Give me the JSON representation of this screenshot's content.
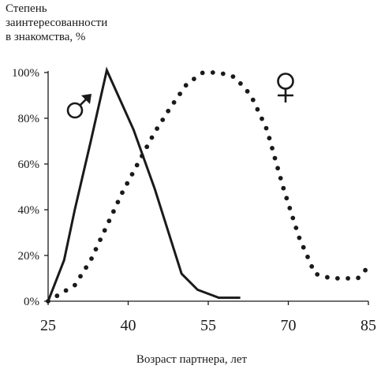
{
  "chart_data": {
    "type": "line",
    "title_lines": [
      "Степень",
      "заинтересованности",
      "в знакомства, %"
    ],
    "xlabel": "Возраст партнера, лет",
    "xlim": [
      25,
      85
    ],
    "ylim": [
      0,
      100
    ],
    "x_ticks": [
      "25",
      "40",
      "55",
      "70",
      "85"
    ],
    "y_ticks": [
      "0%",
      "20%",
      "40%",
      "60%",
      "80%",
      "100%"
    ],
    "series": [
      {
        "name": "♂",
        "style": "solid",
        "color": "#1a1a1a",
        "x": [
          25,
          28,
          30,
          33,
          36,
          41,
          45,
          50,
          53,
          57,
          61
        ],
        "y": [
          0,
          18,
          40,
          70,
          101,
          75,
          49,
          12,
          5,
          1.5,
          1.5
        ]
      },
      {
        "name": "♀",
        "style": "dotted",
        "color": "#1a1a1a",
        "x": [
          25,
          30,
          33,
          36,
          39,
          42,
          45,
          48,
          51,
          54,
          57,
          60,
          63,
          66,
          69,
          72,
          75,
          78,
          81,
          83,
          85
        ],
        "y": [
          0,
          7,
          18,
          33,
          48,
          61,
          74,
          85,
          95,
          100,
          100,
          98,
          90,
          75,
          50,
          28,
          12,
          10,
          10,
          10,
          15
        ]
      }
    ]
  }
}
